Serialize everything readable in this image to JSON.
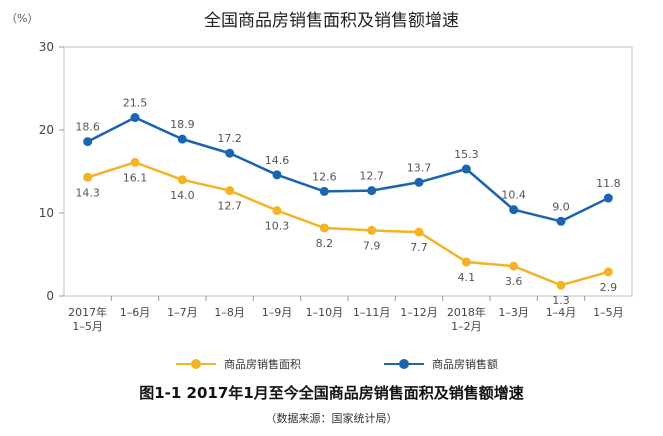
{
  "chart_data": {
    "type": "line",
    "title": "全国商品房销售面积及销售额增速",
    "unit_label": "（%）",
    "categories": [
      "2017年\n1–5月",
      "1–6月",
      "1–7月",
      "1–8月",
      "1–9月",
      "1–10月",
      "1–11月",
      "1–12月",
      "2018年\n1–2月",
      "1–3月",
      "1–4月",
      "1–5月"
    ],
    "ylim": [
      0,
      30
    ],
    "yticks": [
      0,
      10,
      20,
      30
    ],
    "grid": false,
    "legend_position": "bottom",
    "series": [
      {
        "name": "商品房销售面积",
        "color": "#F2B325",
        "values": [
          14.3,
          16.1,
          14.0,
          12.7,
          10.3,
          8.2,
          7.9,
          7.7,
          4.1,
          3.6,
          1.3,
          2.9
        ],
        "labels": [
          "14.3",
          "16.1",
          "14.0",
          "12.7",
          "10.3",
          "8.2",
          "7.9",
          "7.7",
          "4.1",
          "3.6",
          "1.3",
          "2.9"
        ]
      },
      {
        "name": "商品房销售额",
        "color": "#1A64B0",
        "values": [
          18.6,
          21.5,
          18.9,
          17.2,
          14.6,
          12.6,
          12.7,
          13.7,
          15.3,
          10.4,
          9.0,
          11.8
        ],
        "labels": [
          "18.6",
          "21.5",
          "18.9",
          "17.2",
          "14.6",
          "12.6",
          "12.7",
          "13.7",
          "15.3",
          "10.4",
          "9.0",
          "11.8"
        ]
      }
    ]
  },
  "caption": "图1-1 2017年1月至今全国商品房销售面积及销售额增速",
  "source_note": "（数据来源：国家统计局）"
}
